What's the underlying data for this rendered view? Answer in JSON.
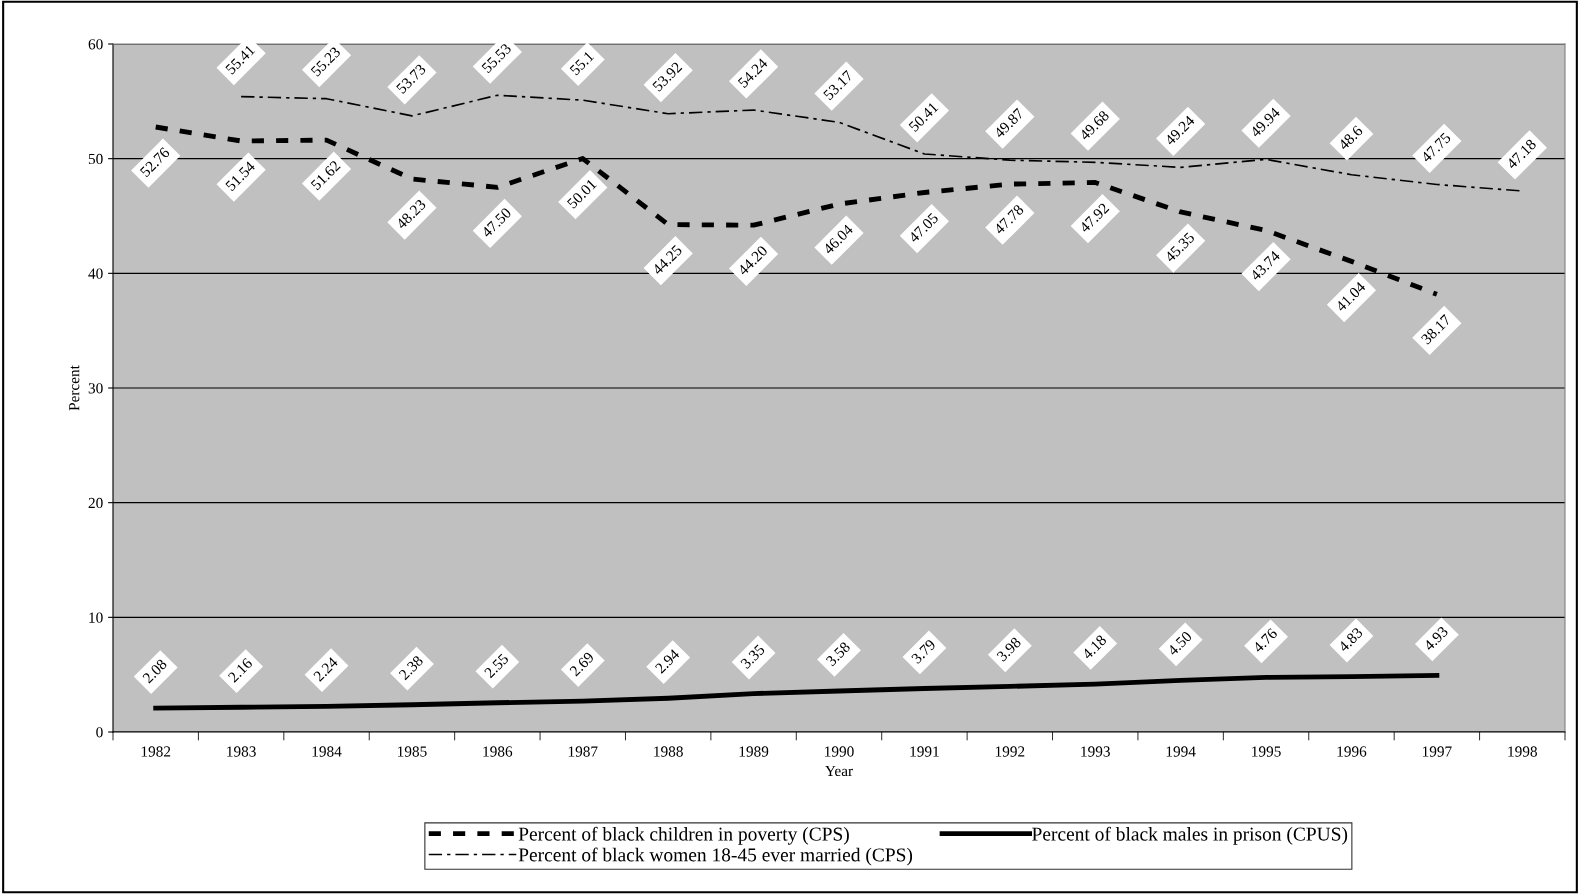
{
  "chart_data": {
    "type": "line",
    "xlabel": "Year",
    "ylabel": "Percent",
    "categories": [
      "1982",
      "1983",
      "1984",
      "1985",
      "1986",
      "1987",
      "1988",
      "1989",
      "1990",
      "1991",
      "1992",
      "1993",
      "1994",
      "1995",
      "1996",
      "1997",
      "1998"
    ],
    "ylim": [
      0,
      60
    ],
    "yticks": [
      0,
      10,
      20,
      30,
      40,
      50,
      60
    ],
    "grid": "y",
    "legend": "bottom",
    "marker": "none",
    "series": [
      {
        "name": "Percent of black children in poverty (CPS)",
        "color": "#000000",
        "line_style": "dashed",
        "values": [
          52.76,
          51.54,
          51.62,
          48.23,
          47.5,
          50.01,
          44.25,
          44.2,
          46.04,
          47.05,
          47.78,
          47.92,
          45.35,
          43.74,
          41.04,
          38.17,
          null
        ],
        "value_labels": [
          "52.76",
          "51.54",
          "51.62",
          "48.23",
          "47.50",
          "50.01",
          "44.25",
          "44.20",
          "46.04",
          "47.05",
          "47.78",
          "47.92",
          "45.35",
          "43.74",
          "41.04",
          "38.17",
          null
        ]
      },
      {
        "name": "Percent of black males in prison (CPUS)",
        "color": "#000000",
        "line_style": "solid",
        "values": [
          2.08,
          2.16,
          2.24,
          2.38,
          2.55,
          2.69,
          2.94,
          3.35,
          3.58,
          3.79,
          3.98,
          4.18,
          4.5,
          4.76,
          4.83,
          4.93,
          null
        ],
        "value_labels": [
          "2.08",
          "2.16",
          "2.24",
          "2.38",
          "2.55",
          "2.69",
          "2.94",
          "3.35",
          "3.58",
          "3.79",
          "3.98",
          "4.18",
          "4.50",
          "4.76",
          "4.83",
          "4.93",
          null
        ]
      },
      {
        "name": "Percent of black women 18-45 ever married (CPS)",
        "color": "#000000",
        "line_style": "dashdot",
        "values": [
          null,
          55.41,
          55.23,
          53.73,
          55.53,
          55.1,
          53.92,
          54.24,
          53.17,
          50.41,
          49.87,
          49.68,
          49.24,
          49.94,
          48.6,
          47.75,
          47.18
        ],
        "value_labels": [
          null,
          "55.41",
          "55.23",
          "53.73",
          "55.53",
          "55.1",
          "53.92",
          "54.24",
          "53.17",
          "50.41",
          "49.87",
          "49.68",
          "49.24",
          "49.94",
          "48.6",
          "47.75",
          "47.18"
        ]
      }
    ]
  }
}
